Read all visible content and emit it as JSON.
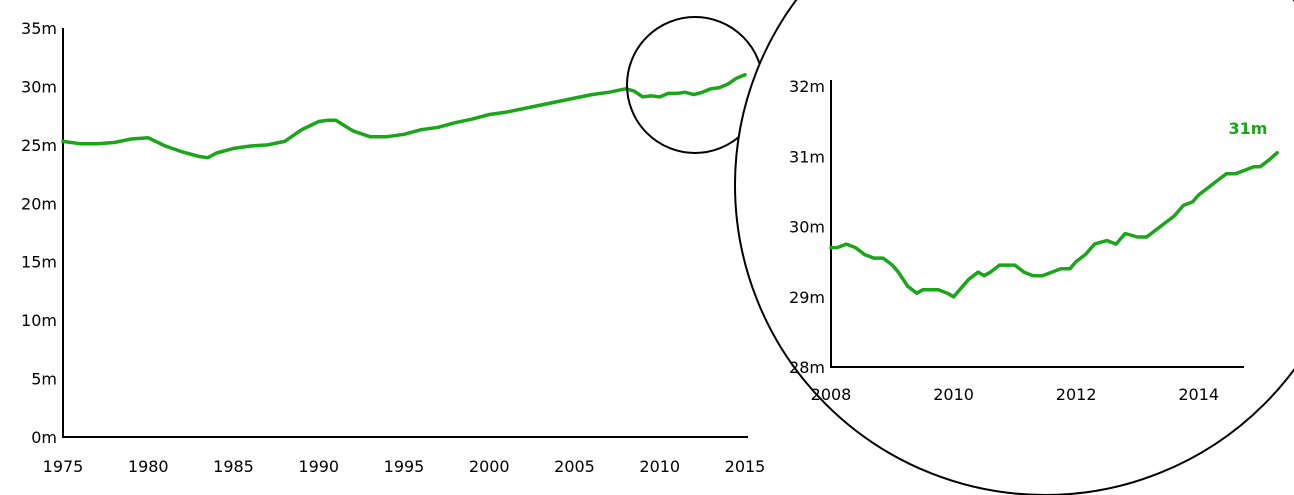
{
  "colors": {
    "line": "#1aa51a",
    "axis": "#000000",
    "background": "#ffffff"
  },
  "chart_data": [
    {
      "type": "line",
      "title": "",
      "xlabel": "",
      "ylabel": "",
      "xlim": [
        1975,
        2015
      ],
      "ylim": [
        0,
        35
      ],
      "grid": false,
      "x_ticks": [
        "1975",
        "1980",
        "1985",
        "1990",
        "1995",
        "2000",
        "2005",
        "2010",
        "2015"
      ],
      "y_ticks": [
        "0m",
        "5m",
        "10m",
        "15m",
        "20m",
        "25m",
        "30m",
        "35m"
      ],
      "series": [
        {
          "x": [
            1975,
            1976,
            1977,
            1978,
            1979,
            1980,
            1981,
            1982,
            1983,
            1983.5,
            1984,
            1985,
            1986,
            1987,
            1988,
            1989,
            1990,
            1990.5,
            1991,
            1992,
            1993,
            1994,
            1995,
            1996,
            1997,
            1998,
            1999,
            2000,
            2001,
            2002,
            2003,
            2004,
            2005,
            2006,
            2007,
            2008,
            2008.5,
            2009,
            2009.5,
            2010,
            2010.5,
            2011,
            2011.5,
            2012,
            2012.5,
            2013,
            2013.5,
            2014,
            2014.5,
            2015
          ],
          "y": [
            25.3,
            25.1,
            25.1,
            25.2,
            25.5,
            25.6,
            24.9,
            24.4,
            24.0,
            23.9,
            24.3,
            24.7,
            24.9,
            25.0,
            25.3,
            26.3,
            27.0,
            27.1,
            27.1,
            26.2,
            25.7,
            25.7,
            25.9,
            26.3,
            26.5,
            26.9,
            27.2,
            27.6,
            27.8,
            28.1,
            28.4,
            28.7,
            29.0,
            29.3,
            29.5,
            29.8,
            29.6,
            29.1,
            29.2,
            29.1,
            29.4,
            29.4,
            29.5,
            29.3,
            29.5,
            29.8,
            29.9,
            30.2,
            30.7,
            31.0
          ]
        }
      ]
    },
    {
      "type": "line",
      "title": "",
      "xlabel": "",
      "ylabel": "",
      "xlim": [
        2008,
        2015
      ],
      "ylim": [
        28,
        32
      ],
      "grid": false,
      "x_ticks": [
        "2008",
        "2010",
        "2012",
        "2014"
      ],
      "y_ticks": [
        "28m",
        "29m",
        "30m",
        "31m",
        "32m"
      ],
      "annotation": "31m",
      "series": [
        {
          "x": [
            2008.0,
            2008.1,
            2008.25,
            2008.4,
            2008.55,
            2008.7,
            2008.85,
            2009.0,
            2009.1,
            2009.25,
            2009.4,
            2009.5,
            2009.6,
            2009.75,
            2009.9,
            2010.0,
            2010.1,
            2010.25,
            2010.4,
            2010.5,
            2010.6,
            2010.75,
            2010.9,
            2011.0,
            2011.15,
            2011.3,
            2011.45,
            2011.6,
            2011.75,
            2011.9,
            2012.0,
            2012.15,
            2012.3,
            2012.5,
            2012.65,
            2012.8,
            2013.0,
            2013.15,
            2013.3,
            2013.45,
            2013.6,
            2013.75,
            2013.9,
            2014.0,
            2014.15,
            2014.3,
            2014.45,
            2014.6,
            2014.75,
            2014.9,
            2015.0,
            2015.15,
            2015.28
          ],
          "y": [
            29.7,
            29.7,
            29.75,
            29.7,
            29.6,
            29.55,
            29.55,
            29.45,
            29.35,
            29.15,
            29.05,
            29.1,
            29.1,
            29.1,
            29.05,
            29.0,
            29.1,
            29.25,
            29.35,
            29.3,
            29.35,
            29.45,
            29.45,
            29.45,
            29.35,
            29.3,
            29.3,
            29.35,
            29.4,
            29.4,
            29.5,
            29.6,
            29.75,
            29.8,
            29.75,
            29.9,
            29.85,
            29.85,
            29.95,
            30.05,
            30.15,
            30.3,
            30.35,
            30.45,
            30.55,
            30.65,
            30.75,
            30.75,
            30.8,
            30.85,
            30.85,
            30.95,
            31.05
          ]
        }
      ]
    }
  ]
}
